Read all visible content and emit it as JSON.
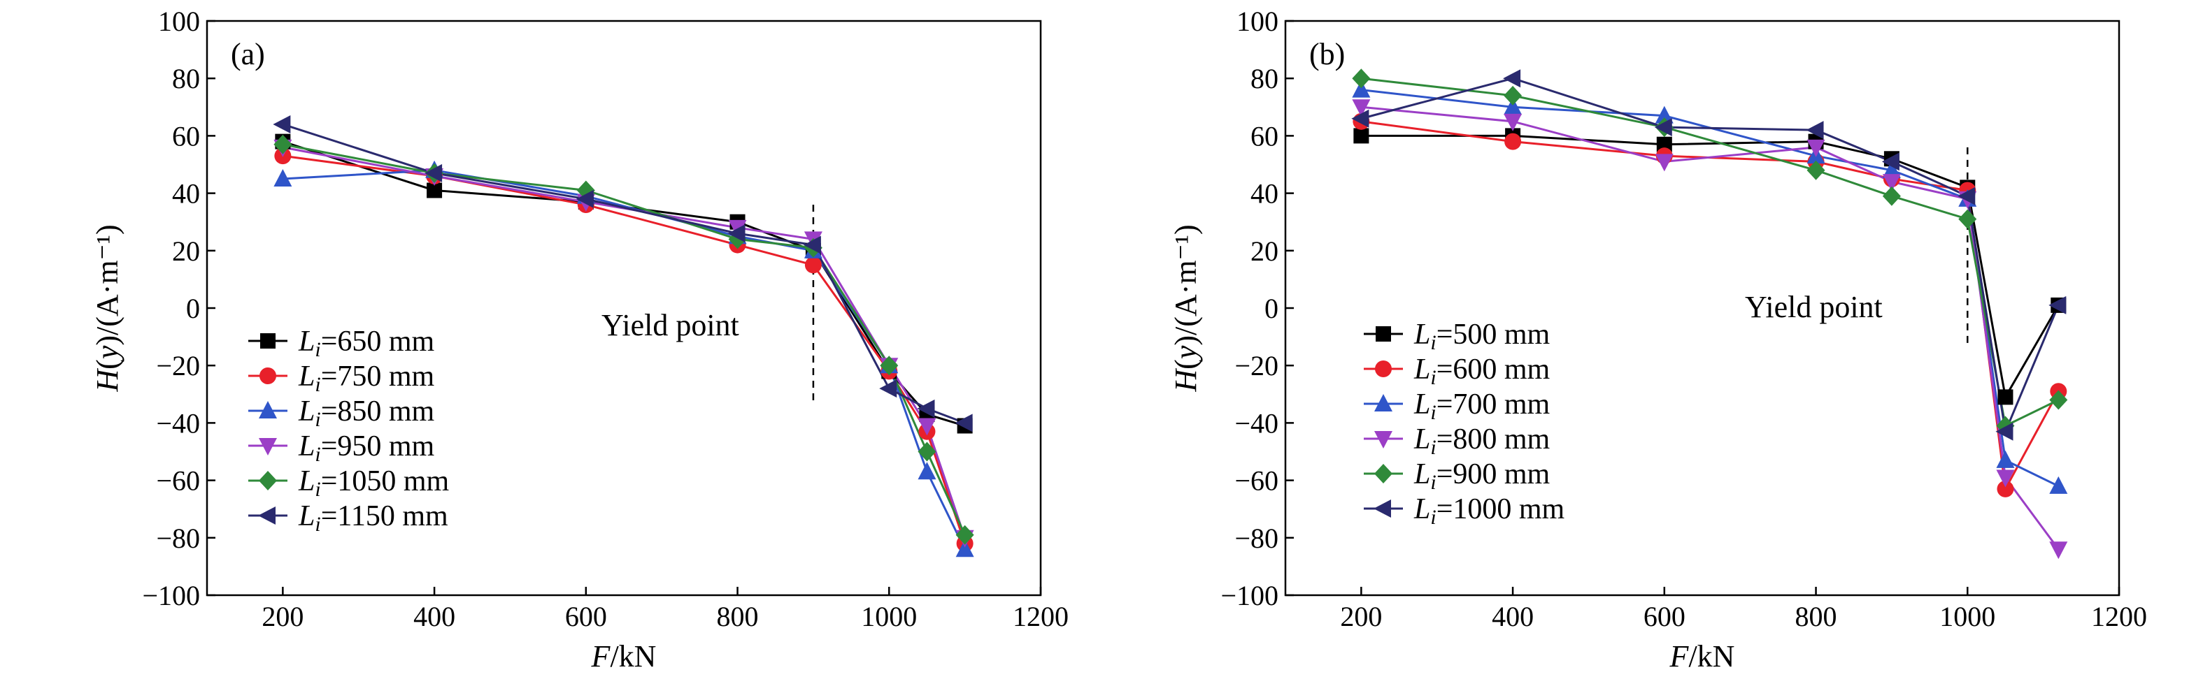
{
  "chart_data": [
    {
      "type": "line",
      "panel_label": "(a)",
      "xlabel": "F/kN",
      "ylabel": "H(y)/(A·m⁻¹)",
      "xlim": [
        100,
        1200
      ],
      "ylim": [
        -100,
        100
      ],
      "xticks": [
        200,
        400,
        600,
        800,
        1000,
        1200
      ],
      "yticks": [
        -100,
        -80,
        -60,
        -40,
        -20,
        0,
        20,
        40,
        60,
        80,
        100
      ],
      "grid": false,
      "legend_position": "lower-left",
      "annotation": {
        "text": "Yield point",
        "x_line": 900,
        "y_from": -34,
        "y_to": 36
      },
      "series": [
        {
          "name": "Li=650 mm",
          "label_sub": "i",
          "label_main": "L",
          "label_rest": "=650 mm",
          "color": "#000000",
          "marker": "square",
          "x": [
            200,
            400,
            600,
            800,
            900,
            1000,
            1050,
            1100
          ],
          "y": [
            58,
            41,
            37,
            30,
            20,
            -22,
            -37,
            -41
          ]
        },
        {
          "name": "Li=750 mm",
          "label_sub": "i",
          "label_main": "L",
          "label_rest": "=750 mm",
          "color": "#e8202a",
          "marker": "circle",
          "x": [
            200,
            400,
            600,
            800,
            900,
            1000,
            1050,
            1100
          ],
          "y": [
            53,
            46,
            36,
            22,
            15,
            -22,
            -43,
            -82
          ]
        },
        {
          "name": "Li=850 mm",
          "label_sub": "i",
          "label_main": "L",
          "label_rest": "=850 mm",
          "color": "#2f55c9",
          "marker": "triangle-up",
          "x": [
            200,
            400,
            600,
            800,
            900,
            1000,
            1050,
            1100
          ],
          "y": [
            45,
            48,
            39,
            25,
            20,
            -20,
            -57,
            -84
          ]
        },
        {
          "name": "Li=950 mm",
          "label_sub": "i",
          "label_main": "L",
          "label_rest": "=950 mm",
          "color": "#9b3ec6",
          "marker": "triangle-down",
          "x": [
            200,
            400,
            600,
            800,
            900,
            1000,
            1050,
            1100
          ],
          "y": [
            56,
            46,
            37,
            28,
            24,
            -20,
            -41,
            -80
          ]
        },
        {
          "name": "Li=1050 mm",
          "label_sub": "i",
          "label_main": "L",
          "label_rest": "=1050 mm",
          "color": "#2f8a3a",
          "marker": "diamond",
          "x": [
            200,
            400,
            600,
            800,
            900,
            1000,
            1050,
            1100
          ],
          "y": [
            57,
            47,
            41,
            24,
            21,
            -20,
            -50,
            -79
          ]
        },
        {
          "name": "Li=1150 mm",
          "label_sub": "i",
          "label_main": "L",
          "label_rest": "=1150 mm",
          "color": "#2a2a6e",
          "marker": "triangle-left",
          "x": [
            200,
            400,
            600,
            800,
            900,
            1000,
            1050,
            1100
          ],
          "y": [
            64,
            47,
            38,
            26,
            22,
            -28,
            -35,
            -40
          ]
        }
      ]
    },
    {
      "type": "line",
      "panel_label": "(b)",
      "xlabel": "F/kN",
      "ylabel": "H(y)/(A·m⁻¹)",
      "xlim": [
        100,
        1200
      ],
      "ylim": [
        -100,
        100
      ],
      "xticks": [
        200,
        400,
        600,
        800,
        1000,
        1200
      ],
      "yticks": [
        -100,
        -80,
        -60,
        -40,
        -20,
        0,
        20,
        40,
        60,
        80,
        100
      ],
      "grid": false,
      "legend_position": "lower-left",
      "annotation": {
        "text": "Yield point",
        "x_line": 1000,
        "y_from": -14,
        "y_to": 56
      },
      "series": [
        {
          "name": "Li=500 mm",
          "label_sub": "i",
          "label_main": "L",
          "label_rest": "=500 mm",
          "color": "#000000",
          "marker": "square",
          "x": [
            200,
            400,
            600,
            800,
            900,
            1000,
            1050,
            1120
          ],
          "y": [
            60,
            60,
            57,
            58,
            52,
            42,
            -31,
            1
          ]
        },
        {
          "name": "Li=600 mm",
          "label_sub": "i",
          "label_main": "L",
          "label_rest": "=600 mm",
          "color": "#e8202a",
          "marker": "circle",
          "x": [
            200,
            400,
            600,
            800,
            900,
            1000,
            1050,
            1120
          ],
          "y": [
            65,
            58,
            53,
            51,
            45,
            41,
            -63,
            -29
          ]
        },
        {
          "name": "Li=700 mm",
          "label_sub": "i",
          "label_main": "L",
          "label_rest": "=700 mm",
          "color": "#2f55c9",
          "marker": "triangle-up",
          "x": [
            200,
            400,
            600,
            800,
            900,
            1000,
            1050,
            1120
          ],
          "y": [
            76,
            70,
            67,
            53,
            48,
            38,
            -53,
            -62
          ]
        },
        {
          "name": "Li=800 mm",
          "label_sub": "i",
          "label_main": "L",
          "label_rest": "=800 mm",
          "color": "#9b3ec6",
          "marker": "triangle-down",
          "x": [
            200,
            400,
            600,
            800,
            900,
            1000,
            1050,
            1120
          ],
          "y": [
            70,
            65,
            51,
            56,
            44,
            38,
            -59,
            -84
          ]
        },
        {
          "name": "Li=900 mm",
          "label_sub": "i",
          "label_main": "L",
          "label_rest": "=900 mm",
          "color": "#2f8a3a",
          "marker": "diamond",
          "x": [
            200,
            400,
            600,
            800,
            900,
            1000,
            1050,
            1120
          ],
          "y": [
            80,
            74,
            63,
            48,
            39,
            31,
            -41,
            -32
          ]
        },
        {
          "name": "Li=1000 mm",
          "label_sub": "i",
          "label_main": "L",
          "label_rest": "=1000 mm",
          "color": "#2a2a6e",
          "marker": "triangle-left",
          "x": [
            200,
            400,
            600,
            800,
            900,
            1000,
            1050,
            1120
          ],
          "y": [
            66,
            80,
            63,
            62,
            51,
            39,
            -43,
            1
          ]
        }
      ]
    }
  ]
}
